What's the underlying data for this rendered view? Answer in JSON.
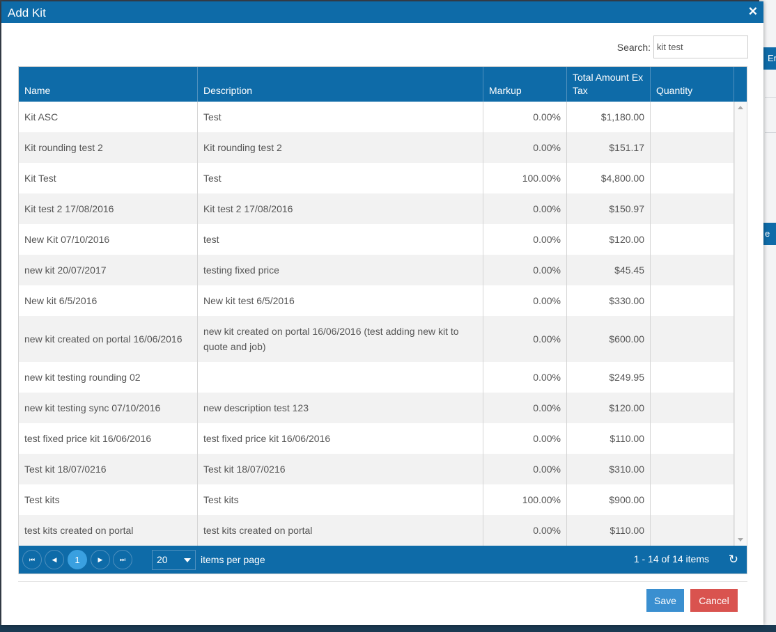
{
  "modal": {
    "title": "Add Kit",
    "close_icon": "✕"
  },
  "search": {
    "label": "Search:",
    "value": "kit test"
  },
  "columns": [
    "Name",
    "Description",
    "Markup",
    "Total Amount Ex Tax",
    "Quantity"
  ],
  "rows": [
    {
      "name": "Kit ASC",
      "description": "Test",
      "markup": "0.00%",
      "total": "$1,180.00",
      "quantity": ""
    },
    {
      "name": "Kit rounding test 2",
      "description": "Kit rounding test 2",
      "markup": "0.00%",
      "total": "$151.17",
      "quantity": ""
    },
    {
      "name": "Kit Test",
      "description": "Test",
      "markup": "100.00%",
      "total": "$4,800.00",
      "quantity": ""
    },
    {
      "name": "Kit test 2 17/08/2016",
      "description": "Kit test 2 17/08/2016",
      "markup": "0.00%",
      "total": "$150.97",
      "quantity": ""
    },
    {
      "name": "New Kit 07/10/2016",
      "description": "test",
      "markup": "0.00%",
      "total": "$120.00",
      "quantity": ""
    },
    {
      "name": "new kit 20/07/2017",
      "description": "testing fixed price",
      "markup": "0.00%",
      "total": "$45.45",
      "quantity": ""
    },
    {
      "name": "New kit 6/5/2016",
      "description": "New kit test 6/5/2016",
      "markup": "0.00%",
      "total": "$330.00",
      "quantity": ""
    },
    {
      "name": "new kit created on portal 16/06/2016",
      "description": "new kit created on portal 16/06/2016 (test adding new kit to quote and job)",
      "markup": "0.00%",
      "total": "$600.00",
      "quantity": ""
    },
    {
      "name": "new kit testing rounding 02",
      "description": "",
      "markup": "0.00%",
      "total": "$249.95",
      "quantity": ""
    },
    {
      "name": "new kit testing sync 07/10/2016",
      "description": "new description test 123",
      "markup": "0.00%",
      "total": "$120.00",
      "quantity": ""
    },
    {
      "name": "test fixed price kit 16/06/2016",
      "description": "test fixed price kit 16/06/2016",
      "markup": "0.00%",
      "total": "$110.00",
      "quantity": ""
    },
    {
      "name": "Test kit 18/07/0216",
      "description": "Test kit 18/07/0216",
      "markup": "0.00%",
      "total": "$310.00",
      "quantity": ""
    },
    {
      "name": "Test kits",
      "description": "Test kits",
      "markup": "100.00%",
      "total": "$900.00",
      "quantity": ""
    },
    {
      "name": "test kits created on portal",
      "description": "test kits created on portal",
      "markup": "0.00%",
      "total": "$110.00",
      "quantity": ""
    }
  ],
  "pager": {
    "first_icon": "⏮",
    "prev_icon": "◀",
    "current_page": "1",
    "next_icon": "▶",
    "last_icon": "⏭",
    "page_size": "20",
    "items_per_page_label": "items per page",
    "count_text": "1 - 14 of 14 items",
    "refresh_icon": "↻"
  },
  "actions": {
    "save_label": "Save",
    "cancel_label": "Cancel"
  },
  "background": {
    "tab1_text": "En",
    "tab2_text": "e C"
  }
}
